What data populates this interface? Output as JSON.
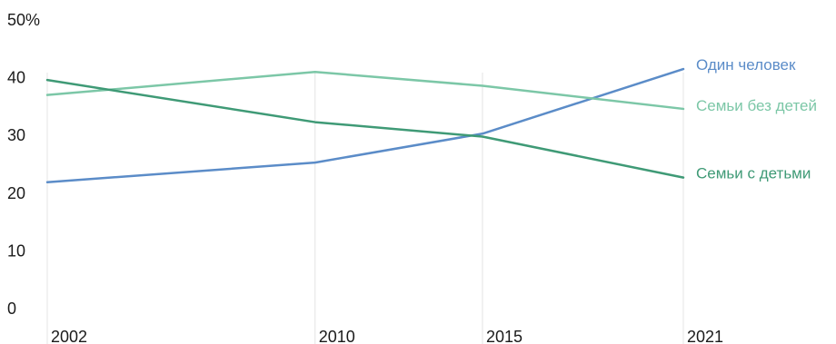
{
  "chart_data": {
    "type": "line",
    "title": "",
    "xlabel": "",
    "ylabel": "",
    "x": [
      2002,
      2010,
      2015,
      2021
    ],
    "y_ticks": [
      "0",
      "10",
      "20",
      "30",
      "40",
      "50%"
    ],
    "ylim": [
      0,
      50
    ],
    "grid": "vertical",
    "legend": "inline-right",
    "series": [
      {
        "name": "Один человек",
        "values": [
          21.9,
          25.3,
          30.3,
          41.5
        ],
        "color": "#5b8cc8"
      },
      {
        "name": "Семьи без детей",
        "values": [
          37.0,
          41.0,
          38.6,
          34.6
        ],
        "color": "#7cc7a7"
      },
      {
        "name": "Семьи с детьми",
        "values": [
          39.6,
          32.3,
          29.8,
          22.7
        ],
        "color": "#3f9a76"
      }
    ]
  }
}
